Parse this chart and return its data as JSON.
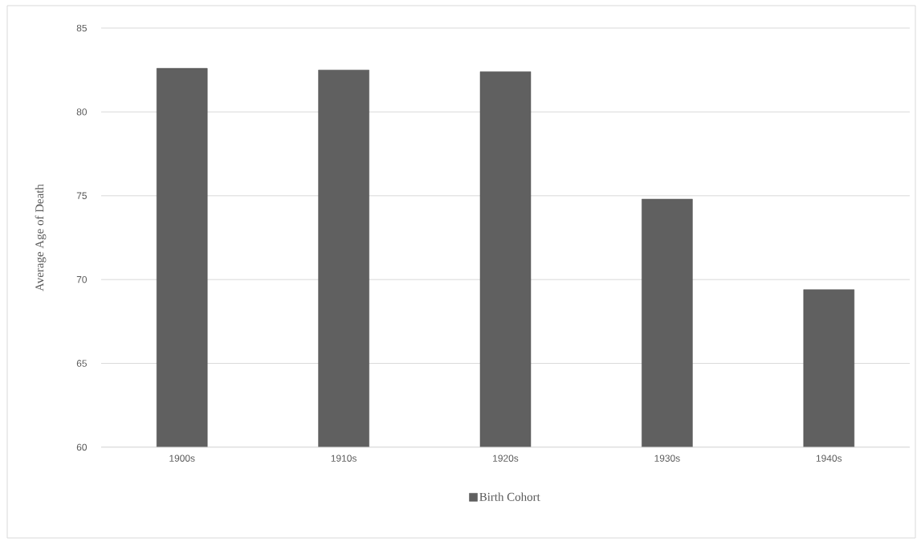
{
  "chart_data": {
    "type": "bar",
    "ylabel": "Average Age of Death",
    "categories": [
      "1900s",
      "1910s",
      "1920s",
      "1930s",
      "1940s"
    ],
    "series": [
      {
        "name": "Birth Cohort",
        "color": "#606060",
        "values": [
          82.6,
          82.5,
          82.4,
          74.8,
          69.4
        ]
      }
    ],
    "ylim": [
      60,
      85
    ],
    "yticks": [
      60,
      65,
      70,
      75,
      80,
      85
    ],
    "grid": "y",
    "legend": "bottom"
  }
}
